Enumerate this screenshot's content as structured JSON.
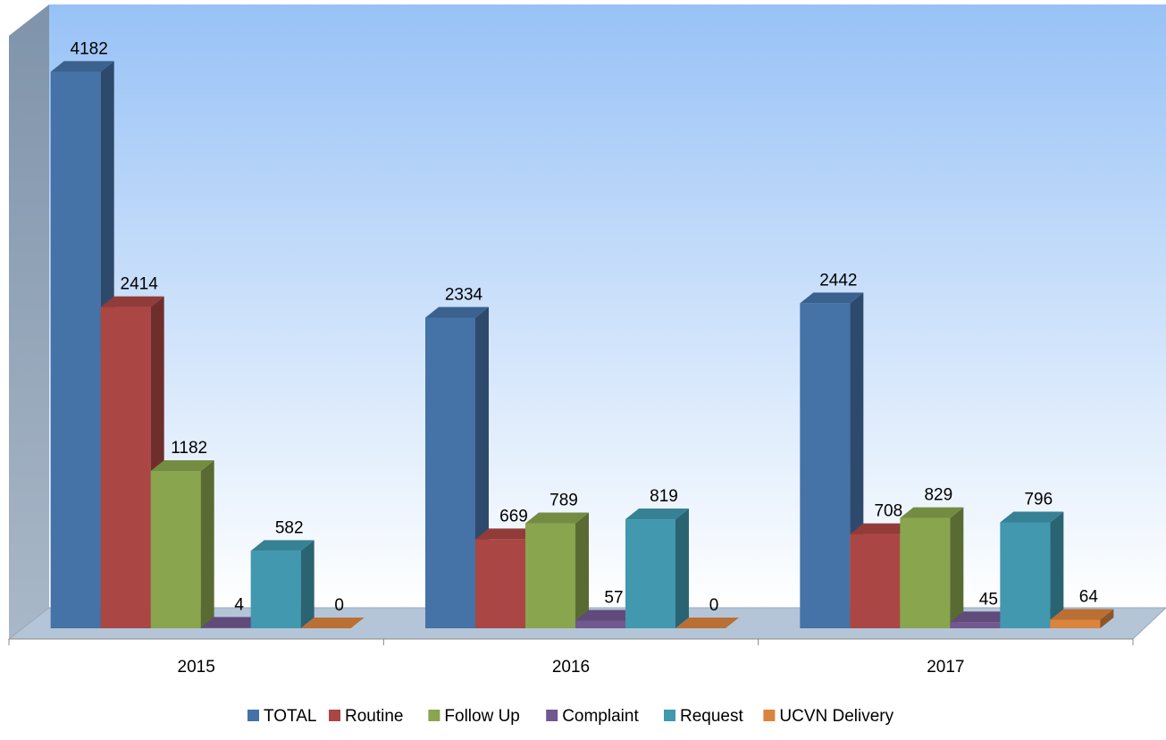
{
  "chart_data": {
    "type": "bar3d",
    "categories": [
      "2015",
      "2016",
      "2017"
    ],
    "series": [
      {
        "name": "TOTAL",
        "color": "#4572a7",
        "values": [
          4182,
          2334,
          2442
        ]
      },
      {
        "name": "Routine",
        "color": "#aa4643",
        "values": [
          2414,
          669,
          708
        ]
      },
      {
        "name": "Follow Up",
        "color": "#89a54e",
        "values": [
          1182,
          789,
          829
        ]
      },
      {
        "name": "Complaint",
        "color": "#71588f",
        "values": [
          4,
          57,
          45
        ]
      },
      {
        "name": "Request",
        "color": "#4198af",
        "values": [
          582,
          819,
          796
        ]
      },
      {
        "name": "UCVN Delivery",
        "color": "#db843d",
        "values": [
          0,
          0,
          64
        ]
      }
    ],
    "ylim": [
      0,
      4500
    ],
    "legend": "bottom"
  }
}
